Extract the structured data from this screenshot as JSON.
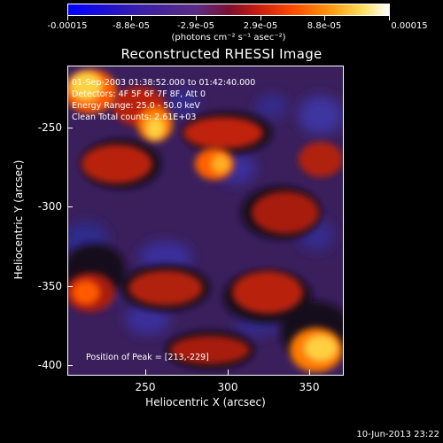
{
  "colorbar": {
    "labels": [
      "-0.00015",
      "-8.8e-05",
      "-2.9e-05",
      "2.9e-05",
      "8.8e-05",
      "0.00015"
    ],
    "units": "(photons cm⁻² s⁻¹ asec⁻²)",
    "colors": [
      "#0000ff",
      "#5a2c84",
      "#c01a10",
      "#ff9a10",
      "#ffffff"
    ]
  },
  "title": "Reconstructed RHESSI Image",
  "annotations": {
    "time": "01-Sep-2003 01:38:52.000 to 01:42:40.000",
    "detectors": "Detectors: 4F 5F 6F 7F 8F, Att 0",
    "energy": "Energy Range: 25.0 - 50.0 keV",
    "clean": "Clean     Total counts: 2.61E+03",
    "peak": "Position of Peak = [213,-229]"
  },
  "axes": {
    "xlabel": "Heliocentric X (arcsec)",
    "ylabel": "Heliocentric Y (arcsec)",
    "xticks": [
      "250",
      "300",
      "350"
    ],
    "yticks": [
      "-250",
      "-300",
      "-350",
      "-400"
    ]
  },
  "timestamp": "10-Jun-2013 23:22"
}
